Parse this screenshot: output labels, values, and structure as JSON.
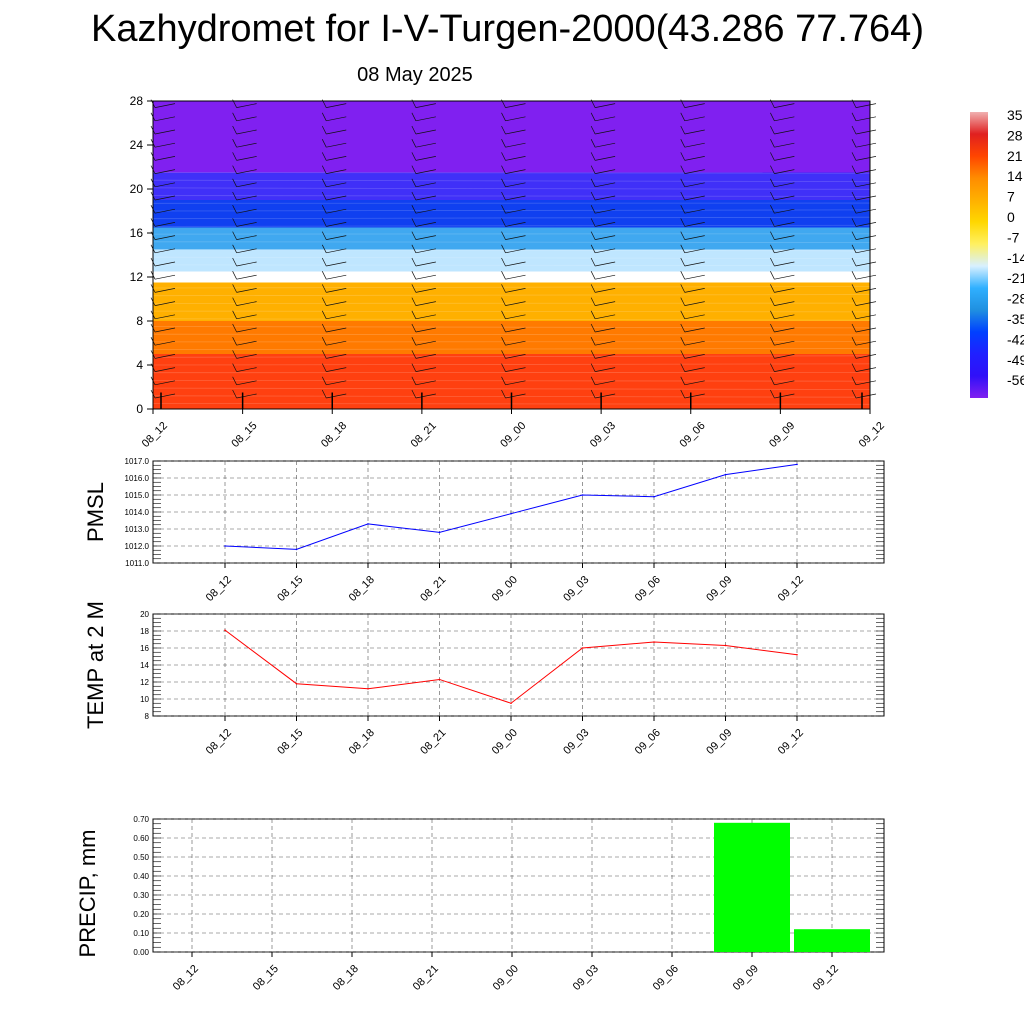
{
  "header": {
    "title": "Kazhydromet for I-V-Turgen-2000(43.286 77.764)",
    "subtitle": "08 May 2025"
  },
  "colorbar": {
    "labels": [
      "35",
      "28",
      "21",
      "14",
      "7",
      "0",
      "-7",
      "-14",
      "-21",
      "-28",
      "-35",
      "-42",
      "-49",
      "-56"
    ],
    "colors": [
      "#f0b0b0",
      "#e02020",
      "#ff4500",
      "#ff8c00",
      "#ffb000",
      "#ffd700",
      "#fff060",
      "#d8f0ff",
      "#30b0ff",
      "#2090e0",
      "#0040ff",
      "#2020ff",
      "#3010f8",
      "#8020f0"
    ]
  },
  "chart_data": [
    {
      "type": "heatmap",
      "title": "",
      "x_ticks": [
        "08_12",
        "08_15",
        "08_18",
        "08_21",
        "09_00",
        "09_03",
        "09_06",
        "09_09",
        "09_12"
      ],
      "y_ticks": [
        "0",
        "4",
        "8",
        "12",
        "16",
        "20",
        "24",
        "28"
      ],
      "ylim": [
        0,
        28
      ],
      "description_bands": [
        {
          "from": 0,
          "to": 5,
          "color": "#ff4010"
        },
        {
          "from": 5,
          "to": 8,
          "color": "#ff7a00"
        },
        {
          "from": 8,
          "to": 11.5,
          "color": "#ffb000"
        },
        {
          "from": 11.5,
          "to": 12.5,
          "color": "#ffffff"
        },
        {
          "from": 12.5,
          "to": 14.5,
          "color": "#bfe6ff"
        },
        {
          "from": 14.5,
          "to": 16.5,
          "color": "#40a8f0"
        },
        {
          "from": 16.5,
          "to": 19,
          "color": "#1040f0"
        },
        {
          "from": 19,
          "to": 21.5,
          "color": "#4030f8"
        },
        {
          "from": 21.5,
          "to": 28,
          "color": "#8020f0"
        }
      ]
    },
    {
      "type": "line",
      "ylabel": "PMSL",
      "x": [
        "08_12",
        "08_15",
        "08_18",
        "08_21",
        "09_00",
        "09_03",
        "09_06",
        "09_09",
        "09_12"
      ],
      "values": [
        1012.0,
        1011.8,
        1013.3,
        1012.8,
        1013.9,
        1015.0,
        1014.9,
        1016.2,
        1016.8
      ],
      "ylim": [
        1011.0,
        1017.0
      ],
      "y_ticks": [
        "1011.0",
        "1012.0",
        "1013.0",
        "1014.0",
        "1015.0",
        "1016.0",
        "1017.0"
      ],
      "color": "#0000ff",
      "grid": true
    },
    {
      "type": "line",
      "ylabel": "TEMP at 2 M",
      "x": [
        "08_12",
        "08_15",
        "08_18",
        "08_21",
        "09_00",
        "09_03",
        "09_06",
        "09_09",
        "09_12"
      ],
      "values": [
        18.1,
        11.8,
        11.2,
        12.3,
        9.5,
        16.0,
        16.7,
        16.3,
        15.2
      ],
      "ylim": [
        8,
        20
      ],
      "y_ticks": [
        "8",
        "10",
        "12",
        "14",
        "16",
        "18",
        "20"
      ],
      "color": "#ff0000",
      "grid": true
    },
    {
      "type": "bar",
      "ylabel": "PRECIP, mm",
      "categories": [
        "08_12",
        "08_15",
        "08_18",
        "08_21",
        "09_00",
        "09_03",
        "09_06",
        "09_09",
        "09_12"
      ],
      "values": [
        0,
        0,
        0,
        0,
        0,
        0,
        0,
        0.68,
        0.12
      ],
      "ylim": [
        0,
        0.7
      ],
      "y_ticks": [
        "0.00",
        "0.10",
        "0.20",
        "0.30",
        "0.40",
        "0.50",
        "0.60",
        "0.70"
      ],
      "color": "#00ff00",
      "grid": true
    }
  ]
}
